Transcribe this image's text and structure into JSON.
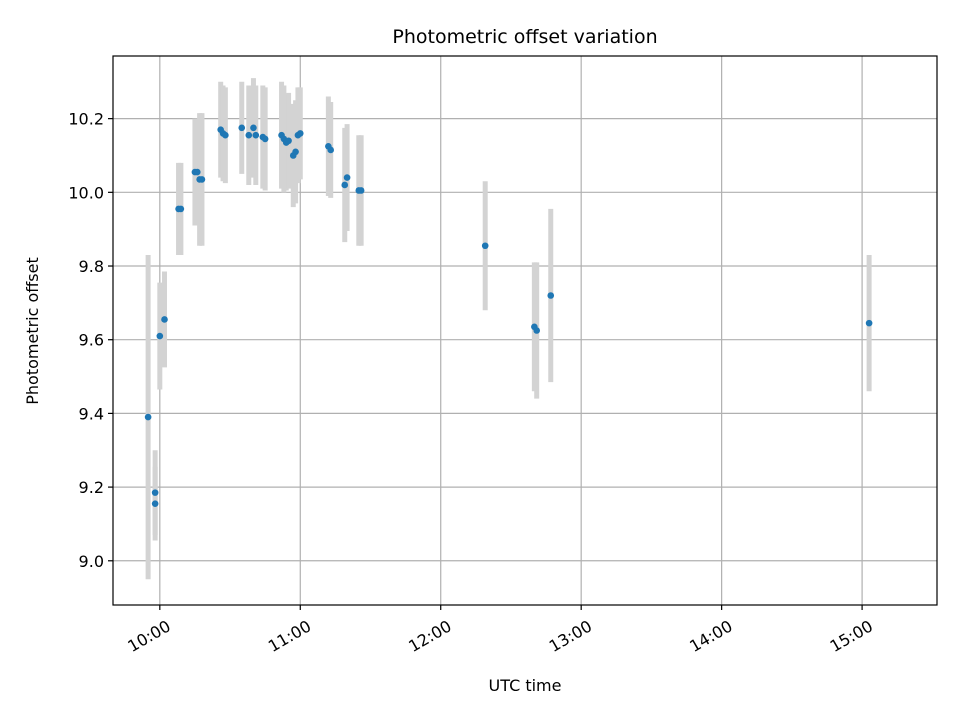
{
  "chart_data": {
    "type": "scatter",
    "title": "Photometric offset variation",
    "xlabel": "UTC time",
    "ylabel": "Photometric offset",
    "x_unit": "HH:MM UTC",
    "xlim": [
      "09:40",
      "15:32"
    ],
    "ylim": [
      8.88,
      10.37
    ],
    "x_ticks": [
      "10:00",
      "11:00",
      "12:00",
      "13:00",
      "14:00",
      "15:00"
    ],
    "y_ticks": [
      9.0,
      9.2,
      9.4,
      9.6,
      9.8,
      10.0,
      10.2
    ],
    "y_tick_labels": [
      "9.0",
      "9.2",
      "9.4",
      "9.6",
      "9.8",
      "10.0",
      "10.2"
    ],
    "grid": true,
    "legend": "none",
    "series": [
      {
        "marker_color": "#1f77b4",
        "errorbar_color": "#d3d3d3",
        "points": [
          {
            "x": "09:55",
            "y": 9.39,
            "yerr": 0.44
          },
          {
            "x": "09:58",
            "y": 9.155,
            "yerr": 0.1
          },
          {
            "x": "09:58",
            "y": 9.185,
            "yerr": 0.115
          },
          {
            "x": "10:00",
            "y": 9.61,
            "yerr": 0.145
          },
          {
            "x": "10:02",
            "y": 9.655,
            "yerr": 0.13
          },
          {
            "x": "10:08",
            "y": 9.955,
            "yerr": 0.125
          },
          {
            "x": "10:09",
            "y": 9.955,
            "yerr": 0.125
          },
          {
            "x": "10:15",
            "y": 10.055,
            "yerr": 0.145
          },
          {
            "x": "10:16",
            "y": 10.055,
            "yerr": 0.145
          },
          {
            "x": "10:17",
            "y": 10.035,
            "yerr": 0.18
          },
          {
            "x": "10:18",
            "y": 10.035,
            "yerr": 0.18
          },
          {
            "x": "10:26",
            "y": 10.17,
            "yerr": 0.13
          },
          {
            "x": "10:27",
            "y": 10.16,
            "yerr": 0.13
          },
          {
            "x": "10:28",
            "y": 10.155,
            "yerr": 0.13
          },
          {
            "x": "10:35",
            "y": 10.175,
            "yerr": 0.125
          },
          {
            "x": "10:38",
            "y": 10.155,
            "yerr": 0.135
          },
          {
            "x": "10:40",
            "y": 10.175,
            "yerr": 0.135
          },
          {
            "x": "10:41",
            "y": 10.155,
            "yerr": 0.135
          },
          {
            "x": "10:44",
            "y": 10.15,
            "yerr": 0.14
          },
          {
            "x": "10:45",
            "y": 10.145,
            "yerr": 0.14
          },
          {
            "x": "10:52",
            "y": 10.155,
            "yerr": 0.145
          },
          {
            "x": "10:53",
            "y": 10.145,
            "yerr": 0.145
          },
          {
            "x": "10:54",
            "y": 10.135,
            "yerr": 0.13
          },
          {
            "x": "10:55",
            "y": 10.14,
            "yerr": 0.13
          },
          {
            "x": "10:57",
            "y": 10.1,
            "yerr": 0.14
          },
          {
            "x": "10:58",
            "y": 10.11,
            "yerr": 0.14
          },
          {
            "x": "10:59",
            "y": 10.155,
            "yerr": 0.13
          },
          {
            "x": "11:00",
            "y": 10.16,
            "yerr": 0.125
          },
          {
            "x": "11:12",
            "y": 10.125,
            "yerr": 0.135
          },
          {
            "x": "11:13",
            "y": 10.115,
            "yerr": 0.13
          },
          {
            "x": "11:19",
            "y": 10.02,
            "yerr": 0.155
          },
          {
            "x": "11:20",
            "y": 10.04,
            "yerr": 0.145
          },
          {
            "x": "11:25",
            "y": 10.005,
            "yerr": 0.15
          },
          {
            "x": "11:26",
            "y": 10.005,
            "yerr": 0.15
          },
          {
            "x": "12:19",
            "y": 9.855,
            "yerr": 0.175
          },
          {
            "x": "12:40",
            "y": 9.635,
            "yerr": 0.175
          },
          {
            "x": "12:41",
            "y": 9.625,
            "yerr": 0.185
          },
          {
            "x": "12:47",
            "y": 9.72,
            "yerr": 0.235
          },
          {
            "x": "15:03",
            "y": 9.645,
            "yerr": 0.185
          }
        ]
      }
    ]
  }
}
